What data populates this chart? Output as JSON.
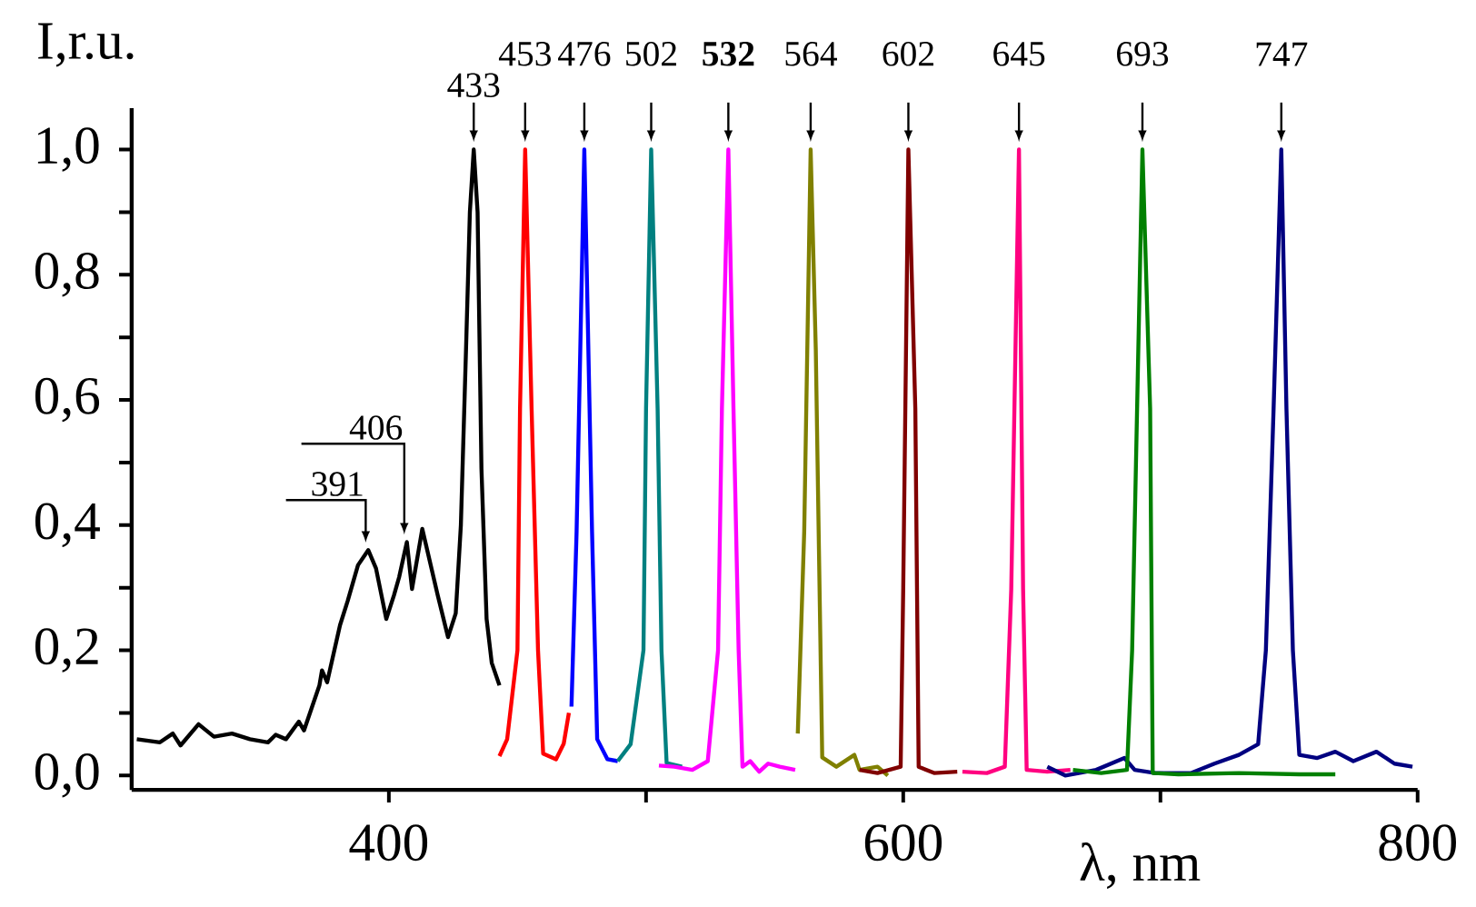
{
  "chart_data": {
    "type": "line",
    "xlabel": "λ, nm",
    "ylabel": "I,r.u.",
    "xlim": [
      300,
      800
    ],
    "ylim": [
      -0.023,
      1.066
    ],
    "xticks": [
      400,
      {
        "value": 500,
        "label": null
      },
      600,
      {
        "value": 700,
        "label": null
      },
      800
    ],
    "yticks": [
      {
        "value": 0,
        "label": "0,0"
      },
      {
        "value": 0.1,
        "label": null
      },
      {
        "value": 0.2,
        "label": "0,2"
      },
      {
        "value": 0.3,
        "label": null
      },
      {
        "value": 0.4,
        "label": "0,4"
      },
      {
        "value": 0.5,
        "label": null
      },
      {
        "value": 0.6,
        "label": "0,6"
      },
      {
        "value": 0.7,
        "label": null
      },
      {
        "value": 0.8,
        "label": "0,8"
      },
      {
        "value": 0.9,
        "label": null
      },
      {
        "value": 1.0,
        "label": "1,0"
      }
    ],
    "series": [
      {
        "color": "#000000",
        "x": [
          302,
          311,
          316,
          319,
          326,
          332,
          339,
          346,
          353,
          356,
          360,
          365,
          367,
          373,
          374,
          376,
          381,
          384,
          388,
          392,
          395,
          399,
          402,
          404,
          407,
          409,
          413,
          419,
          423,
          426,
          428,
          430,
          431.5,
          433,
          434.5,
          436,
          438,
          440,
          443
        ],
        "values": [
          0.058,
          0.053,
          0.067,
          0.048,
          0.082,
          0.062,
          0.067,
          0.058,
          0.053,
          0.065,
          0.058,
          0.086,
          0.072,
          0.144,
          0.168,
          0.149,
          0.24,
          0.279,
          0.336,
          0.36,
          0.331,
          0.25,
          0.288,
          0.317,
          0.373,
          0.298,
          0.394,
          0.288,
          0.221,
          0.259,
          0.4,
          0.68,
          0.9,
          1.0,
          0.9,
          0.49,
          0.25,
          0.18,
          0.144
        ]
      },
      {
        "color": "#ff0000",
        "x": [
          443,
          446,
          450,
          451,
          453,
          455.5,
          458,
          460,
          465,
          468,
          470
        ],
        "values": [
          0.031,
          0.058,
          0.2,
          0.586,
          1.0,
          0.586,
          0.2,
          0.035,
          0.026,
          0.051,
          0.1
        ]
      },
      {
        "color": "#0000ff",
        "x": [
          471,
          473,
          476,
          479,
          481,
          485,
          489
        ],
        "values": [
          0.11,
          0.39,
          1.0,
          0.39,
          0.058,
          0.026,
          0.023
        ]
      },
      {
        "color": "#008080",
        "x": [
          489,
          494,
          499,
          500,
          502,
          504.5,
          506,
          508,
          514
        ],
        "values": [
          0.023,
          0.05,
          0.2,
          0.586,
          1.0,
          0.586,
          0.2,
          0.02,
          0.014
        ]
      },
      {
        "color": "#ff00ff",
        "x": [
          505,
          511,
          518,
          524,
          528,
          529.5,
          532,
          534,
          536,
          537.5,
          540.5,
          544,
          547.5,
          552,
          558
        ],
        "values": [
          0.016,
          0.014,
          0.009,
          0.023,
          0.2,
          0.586,
          1.0,
          0.586,
          0.2,
          0.014,
          0.023,
          0.006,
          0.019,
          0.014,
          0.009
        ]
      },
      {
        "color": "#808000",
        "x": [
          559,
          561.5,
          564,
          566,
          568.5,
          574,
          581,
          583,
          590,
          594
        ],
        "values": [
          0.067,
          0.39,
          1.0,
          0.68,
          0.029,
          0.014,
          0.033,
          0.009,
          0.014,
          0.0
        ]
      },
      {
        "color": "#800000",
        "x": [
          583,
          590,
          599,
          600,
          602,
          604.7,
          606,
          612,
          621
        ],
        "values": [
          0.009,
          0.004,
          0.014,
          0.3,
          1.0,
          0.586,
          0.014,
          0.004,
          0.006
        ]
      },
      {
        "color": "#ff0080",
        "x": [
          623,
          632.5,
          639.5,
          642,
          645,
          646.6,
          648,
          656,
          665
        ],
        "values": [
          0.006,
          0.004,
          0.014,
          0.298,
          1.0,
          0.298,
          0.009,
          0.006,
          0.009
        ]
      },
      {
        "color": "#000080",
        "x": [
          656,
          663,
          675,
          686,
          690,
          698,
          712,
          721,
          730.5,
          738,
          741,
          744,
          747,
          749,
          751.5,
          754,
          761,
          768,
          775,
          784,
          791,
          798
        ],
        "values": [
          0.014,
          0.0,
          0.009,
          0.028,
          0.009,
          0.004,
          0.004,
          0.019,
          0.033,
          0.05,
          0.2,
          0.586,
          1.0,
          0.586,
          0.2,
          0.033,
          0.028,
          0.038,
          0.023,
          0.038,
          0.019,
          0.014
        ]
      },
      {
        "color": "#008000",
        "x": [
          666,
          677,
          687,
          689,
          693,
          696,
          697,
          707,
          730.5,
          754,
          768
        ],
        "values": [
          0.009,
          0.004,
          0.009,
          0.2,
          1.0,
          0.586,
          0.004,
          0.002,
          0.004,
          0.002,
          0.002
        ]
      }
    ],
    "annotations": [
      {
        "text": "391",
        "x": 391,
        "y": 0.36
      },
      {
        "text": "406",
        "x": 406,
        "y": 0.373
      },
      {
        "text": "433",
        "x": 433,
        "y": 1.0
      },
      {
        "text": "453",
        "x": 453,
        "y": 1.0
      },
      {
        "text": "476",
        "x": 476,
        "y": 1.0
      },
      {
        "text": "502",
        "x": 502,
        "y": 1.0
      },
      {
        "text": "**532**",
        "x": 532,
        "y": 1.0
      },
      {
        "text": "564",
        "x": 564,
        "y": 1.0
      },
      {
        "text": "602",
        "x": 602,
        "y": 1.0
      },
      {
        "text": "645",
        "x": 645,
        "y": 1.0
      },
      {
        "text": "693",
        "x": 693,
        "y": 1.0
      },
      {
        "text": "747",
        "x": 747,
        "y": 1.0
      }
    ]
  }
}
